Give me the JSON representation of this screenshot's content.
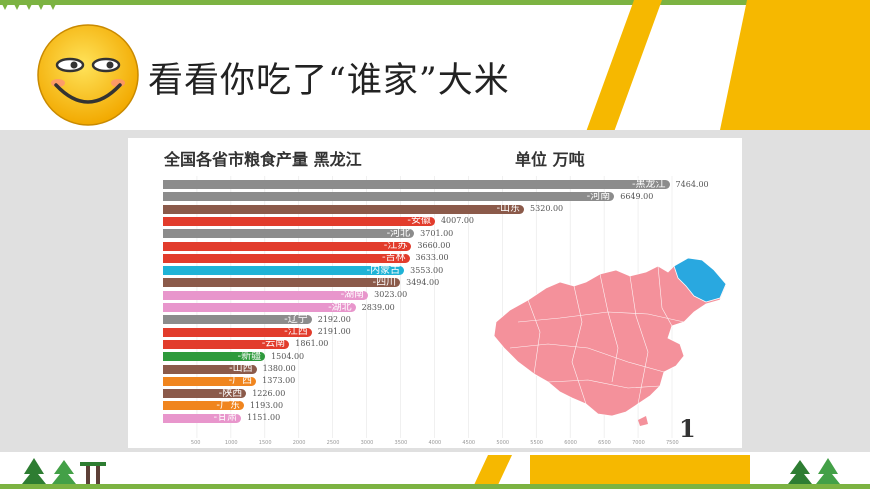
{
  "slide": {
    "title": "看看你吃了“谁家”大米"
  },
  "colors": {
    "accent_yellow": "#f6b800",
    "accent_green": "#7cb342",
    "map_pink": "#f4919b",
    "map_highlight_blue": "#29a8e0"
  },
  "chart_data": {
    "type": "bar",
    "orientation": "horizontal",
    "title": "全国各省市粮食产量 黑龙江",
    "unit_label": "单位 万吨",
    "frame_label": "1",
    "categories": [
      "-黑龙江",
      "-河南",
      "-山东",
      "-安徽",
      "-河北",
      "-江苏",
      "-吉林",
      "-内蒙古",
      "-四川",
      "-湖南",
      "-湖北",
      "-辽宁",
      "-江西",
      "-云南",
      "-新疆",
      "-山西",
      "-广西",
      "-陕西",
      "-广东",
      "-甘肃"
    ],
    "values": [
      7464.0,
      6649.0,
      5320.0,
      4007.0,
      3701.0,
      3660.0,
      3633.0,
      3553.0,
      3494.0,
      3023.0,
      2839.0,
      2192.0,
      2191.0,
      1861.0,
      1504.0,
      1380.0,
      1373.0,
      1226.0,
      1193.0,
      1151.0
    ],
    "value_labels": [
      "7464.00",
      "6649.00",
      "5320.00",
      "4007.00",
      "3701.00",
      "3660.00",
      "3633.00",
      "3553.00",
      "3494.00",
      "3023.00",
      "2839.00",
      "2192.00",
      "2191.00",
      "1861.00",
      "1504.00",
      "1380.00",
      "1373.00",
      "1226.00",
      "1193.00",
      "1151.00"
    ],
    "bar_colors": [
      "#8c8c8c",
      "#8c8c8c",
      "#8b5a4a",
      "#e23c2c",
      "#8c8c8c",
      "#e23c2c",
      "#e23c2c",
      "#1fb3d6",
      "#8b5a4a",
      "#e896cc",
      "#e896cc",
      "#8c8c8c",
      "#e23c2c",
      "#e23c2c",
      "#2e9a3c",
      "#8b5a4a",
      "#f0851e",
      "#8b5a4a",
      "#f0851e",
      "#e896cc"
    ],
    "xlim": [
      0,
      7500
    ],
    "x_ticks": [
      "500",
      "1000",
      "1500",
      "2000",
      "2500",
      "3000",
      "3500",
      "4000",
      "4500",
      "5000",
      "5500",
      "6000",
      "6500",
      "7000",
      "7500"
    ],
    "highlight_region": "黑龙江"
  }
}
